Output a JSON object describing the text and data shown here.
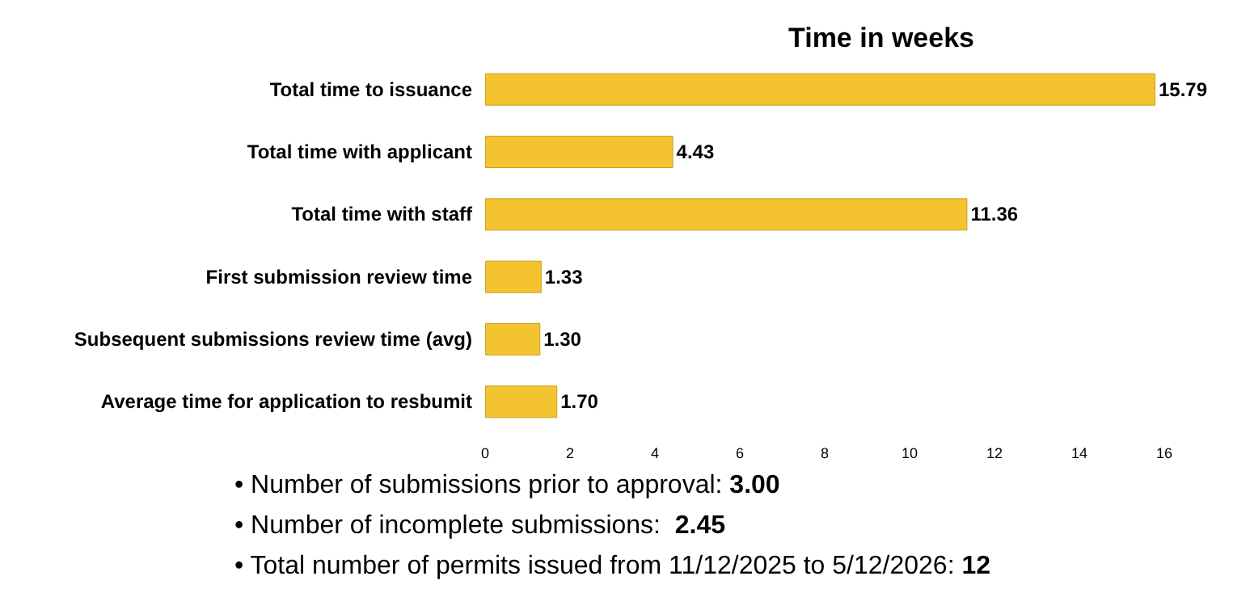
{
  "chart_data": {
    "type": "bar",
    "orientation": "horizontal",
    "title": "Time in weeks",
    "categories": [
      "Total time to issuance",
      "Total time with applicant",
      "Total time with staff",
      "First submission review time",
      "Subsequent submissions review time (avg)",
      "Average time for application to resbumit"
    ],
    "values": [
      15.79,
      4.43,
      11.36,
      1.33,
      1.3,
      1.7
    ],
    "value_labels": [
      "15.79",
      "4.43",
      "11.36",
      "1.33",
      "1.30",
      "1.70"
    ],
    "color": "#f4c430",
    "xlim": [
      0,
      16
    ],
    "xticks": [
      0,
      2,
      4,
      6,
      8,
      10,
      12,
      14,
      16
    ],
    "grid": false,
    "annotations": [
      "• Number of submissions prior to approval: 3.00",
      "• Number of incomplete submissions:  2.45",
      "• Total number of permits issued from 11/12/2025 to 5/12/2026: 12"
    ]
  }
}
